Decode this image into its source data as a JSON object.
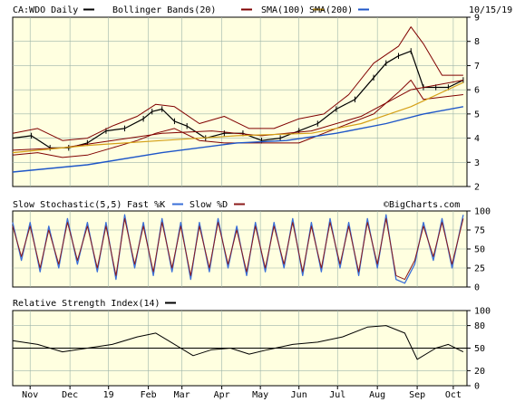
{
  "header": {
    "symbol": "CA:WDO Daily",
    "bollinger_label": "Bollinger Bands(20)",
    "sma100_label": "SMA(100)",
    "sma200_label": "SMA(200)",
    "date": "10/15/19"
  },
  "stoch_header": {
    "title": "Slow Stochastic(5,5)",
    "fast_label": "Fast %K",
    "slow_label": "Slow %D",
    "watermark": "©BigCharts.com"
  },
  "rsi_header": {
    "title": "Relative Strength Index(14)"
  },
  "colors": {
    "price": "#000000",
    "bollinger": "#800000",
    "sma100": "#800000",
    "sma200": "#d4a017",
    "sma200_line": "#1e56c8",
    "fast_k": "#3a6fd8",
    "slow_d": "#8b1a1a",
    "background": "#ffffe0",
    "grid": "#9db5a9"
  },
  "x_axis": {
    "labels": [
      "Nov",
      "Dec",
      "19",
      "Feb",
      "Mar",
      "Apr",
      "May",
      "Jun",
      "Jul",
      "Aug",
      "Sep",
      "Oct"
    ],
    "label_days": [
      14,
      46,
      77,
      109,
      136,
      168,
      199,
      230,
      261,
      293,
      325,
      354
    ]
  },
  "chart_data": [
    {
      "type": "line",
      "panel": "price",
      "title": "CA:WDO Daily",
      "ylim": [
        2,
        9
      ],
      "yticks": [
        2,
        3,
        4,
        5,
        6,
        7,
        8,
        9
      ],
      "x_unit": "days from Oct 1 2018",
      "series": [
        {
          "name": "CA:WDO Daily",
          "x": [
            0,
            15,
            30,
            45,
            60,
            75,
            90,
            105,
            112,
            120,
            130,
            140,
            155,
            170,
            185,
            200,
            215,
            230,
            245,
            260,
            275,
            290,
            300,
            310,
            320,
            330,
            340,
            350,
            362
          ],
          "values": [
            4.0,
            4.1,
            3.6,
            3.6,
            3.8,
            4.3,
            4.4,
            4.8,
            5.1,
            5.2,
            4.7,
            4.5,
            4.0,
            4.2,
            4.2,
            3.9,
            4.0,
            4.3,
            4.6,
            5.2,
            5.6,
            6.5,
            7.1,
            7.4,
            7.6,
            6.1,
            6.1,
            6.1,
            6.4
          ]
        },
        {
          "name": "Bollinger Bands(20) upper",
          "x": [
            0,
            20,
            40,
            60,
            80,
            100,
            115,
            130,
            150,
            170,
            190,
            210,
            230,
            250,
            270,
            290,
            310,
            320,
            330,
            345,
            362
          ],
          "values": [
            4.2,
            4.4,
            3.9,
            4.0,
            4.5,
            4.9,
            5.4,
            5.3,
            4.6,
            4.9,
            4.4,
            4.4,
            4.8,
            5.0,
            5.8,
            7.1,
            7.8,
            8.6,
            7.9,
            6.6,
            6.6
          ]
        },
        {
          "name": "Bollinger Bands(20) lower",
          "x": [
            0,
            20,
            40,
            60,
            80,
            100,
            115,
            130,
            150,
            170,
            190,
            210,
            230,
            250,
            270,
            290,
            310,
            320,
            330,
            345,
            362
          ],
          "values": [
            3.3,
            3.4,
            3.2,
            3.3,
            3.6,
            3.9,
            4.2,
            4.4,
            3.9,
            3.8,
            3.8,
            3.8,
            3.8,
            4.2,
            4.6,
            5.0,
            5.9,
            6.4,
            5.6,
            5.7,
            5.8
          ]
        },
        {
          "name": "SMA(100)",
          "x": [
            0,
            40,
            80,
            120,
            160,
            200,
            240,
            280,
            320,
            362
          ],
          "values": [
            3.5,
            3.6,
            3.9,
            4.2,
            4.3,
            4.1,
            4.3,
            4.9,
            6.0,
            6.4
          ]
        },
        {
          "name": "SMA(200)",
          "x": [
            0,
            60,
            120,
            180,
            240,
            280,
            320,
            362
          ],
          "values": [
            3.4,
            3.7,
            3.9,
            4.1,
            4.2,
            4.6,
            5.3,
            6.3
          ]
        },
        {
          "name": "SMA(200) blue",
          "x": [
            0,
            60,
            120,
            180,
            220,
            260,
            300,
            330,
            362
          ],
          "values": [
            2.6,
            2.9,
            3.4,
            3.8,
            3.9,
            4.2,
            4.6,
            5.0,
            5.3
          ]
        }
      ]
    },
    {
      "type": "line",
      "panel": "stochastic",
      "title": "Slow Stochastic(5,5)",
      "ylim": [
        0,
        100
      ],
      "yticks": [
        0,
        25,
        50,
        75,
        100
      ],
      "series": [
        {
          "name": "Fast %K",
          "x": [
            0,
            7,
            14,
            22,
            29,
            37,
            44,
            52,
            60,
            68,
            75,
            83,
            90,
            98,
            105,
            113,
            120,
            128,
            135,
            143,
            150,
            158,
            165,
            173,
            180,
            188,
            195,
            203,
            210,
            218,
            225,
            233,
            240,
            248,
            255,
            263,
            270,
            278,
            285,
            293,
            300,
            308,
            315,
            323,
            330,
            338,
            345,
            353,
            362
          ],
          "values": [
            85,
            35,
            85,
            20,
            80,
            25,
            90,
            30,
            85,
            20,
            85,
            10,
            95,
            25,
            85,
            15,
            90,
            20,
            85,
            10,
            85,
            20,
            90,
            25,
            80,
            15,
            85,
            20,
            85,
            25,
            90,
            15,
            85,
            20,
            90,
            25,
            85,
            15,
            90,
            25,
            95,
            10,
            5,
            30,
            85,
            35,
            90,
            25,
            95
          ]
        },
        {
          "name": "Slow %D",
          "x": [
            0,
            7,
            14,
            22,
            29,
            37,
            44,
            52,
            60,
            68,
            75,
            83,
            90,
            98,
            105,
            113,
            120,
            128,
            135,
            143,
            150,
            158,
            165,
            173,
            180,
            188,
            195,
            203,
            210,
            218,
            225,
            233,
            240,
            248,
            255,
            263,
            270,
            278,
            285,
            293,
            300,
            308,
            315,
            323,
            330,
            338,
            345,
            353,
            362
          ],
          "values": [
            80,
            40,
            80,
            25,
            75,
            30,
            85,
            35,
            80,
            25,
            80,
            15,
            90,
            30,
            80,
            20,
            85,
            25,
            80,
            15,
            80,
            25,
            85,
            30,
            75,
            20,
            80,
            25,
            80,
            30,
            85,
            20,
            80,
            25,
            85,
            30,
            80,
            20,
            85,
            30,
            90,
            15,
            10,
            35,
            80,
            40,
            85,
            30,
            90
          ]
        }
      ]
    },
    {
      "type": "line",
      "panel": "rsi",
      "title": "Relative Strength Index(14)",
      "ylim": [
        0,
        100
      ],
      "yticks": [
        0,
        20,
        50,
        80,
        100
      ],
      "series": [
        {
          "name": "Relative Strength Index(14)",
          "x": [
            0,
            20,
            40,
            60,
            80,
            100,
            115,
            125,
            145,
            160,
            175,
            190,
            205,
            225,
            245,
            265,
            285,
            300,
            315,
            325,
            340,
            350,
            362
          ],
          "values": [
            60,
            55,
            45,
            50,
            55,
            65,
            70,
            60,
            40,
            48,
            50,
            42,
            48,
            55,
            58,
            65,
            78,
            80,
            70,
            35,
            50,
            55,
            45
          ]
        }
      ]
    }
  ]
}
